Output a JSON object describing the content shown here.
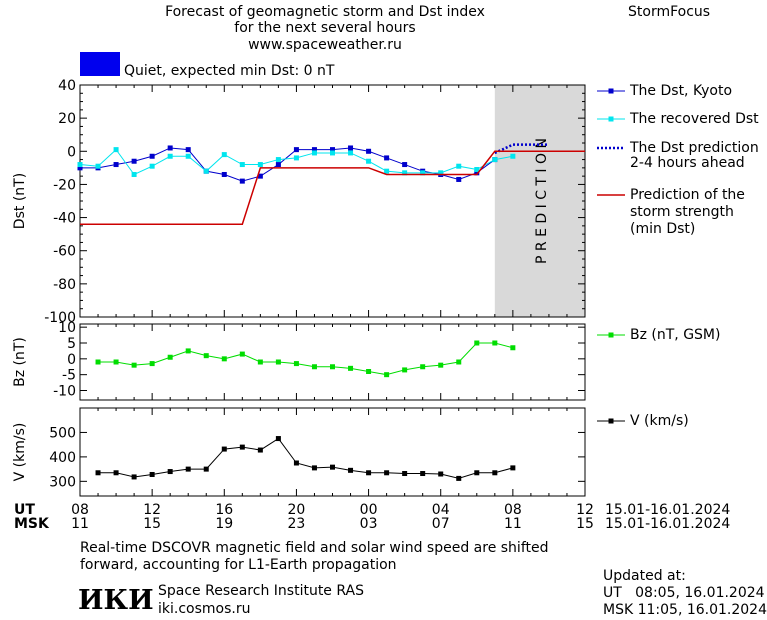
{
  "header": {
    "title_line1": "Forecast of geomagnetic storm and Dst index",
    "title_line2": "for the next several hours",
    "website": "www.spaceweather.ru",
    "brand": "StormFocus"
  },
  "status": {
    "label": "Quiet, expected min Dst: 0 nT",
    "color": "#0000ee"
  },
  "legend": {
    "dst_kyoto": "The Dst, Kyoto",
    "recovered": "The recovered Dst",
    "prediction_line1": "The Dst prediction",
    "prediction_line2": "2-4 hours ahead",
    "storm_line1": "Prediction of the",
    "storm_line2": "storm strength",
    "storm_line3": "(min Dst)",
    "bz": "Bz (nT, GSM)",
    "v": "V (km/s)"
  },
  "time_axis": {
    "ut_label": "UT",
    "msk_label": "MSK",
    "ut_ticks": [
      "08",
      "12",
      "16",
      "20",
      "00",
      "04",
      "08",
      "12"
    ],
    "msk_ticks": [
      "11",
      "15",
      "19",
      "23",
      "03",
      "07",
      "11",
      "15"
    ],
    "date_range": "15.01-16.01.2024"
  },
  "footer": {
    "note_line1": "Real-time DSCOVR magnetic field and solar wind speed are shifted",
    "note_line2": "forward, accounting for L1-Earth propagation",
    "logo_text": "ИКИ",
    "institute": "Space Research Institute RAS",
    "institute_url": "iki.cosmos.ru",
    "updated_label": "Updated at:",
    "updated_ut": "UT   08:05, 16.01.2024",
    "updated_msk": "MSK 11:05, 16.01.2024"
  },
  "prediction_band_label": "P R E D I C T I O N",
  "colors": {
    "dst_kyoto": "#0000cc",
    "recovered": "#00e5ee",
    "prediction": "#0000cc",
    "storm": "#cc0000",
    "bz": "#00dd00",
    "v": "#000000",
    "prediction_band": "#d9d9d9"
  },
  "chart_data": [
    {
      "type": "line",
      "ylabel": "Dst (nT)",
      "xlim": [
        8,
        36
      ],
      "ylim": [
        -100,
        40
      ],
      "yticks": [
        40,
        20,
        0,
        -20,
        -40,
        -60,
        -80,
        -100
      ],
      "prediction_start": 31,
      "series": [
        {
          "name": "The Dst, Kyoto",
          "x": [
            8,
            9,
            10,
            11,
            12,
            13,
            14,
            15,
            16,
            17,
            18,
            19,
            20,
            21,
            22,
            23,
            24,
            25,
            26,
            27,
            28,
            29,
            30,
            31
          ],
          "y": [
            -10,
            -10,
            -8,
            -6,
            -3,
            2,
            1,
            -12,
            -14,
            -18,
            -15,
            -8,
            1,
            1,
            1,
            2,
            0,
            -4,
            -8,
            -12,
            -14,
            -17,
            -13,
            -5
          ]
        },
        {
          "name": "The recovered Dst",
          "x": [
            8,
            9,
            10,
            11,
            12,
            13,
            14,
            15,
            16,
            17,
            18,
            19,
            20,
            21,
            22,
            23,
            24,
            25,
            26,
            27,
            28,
            29,
            30,
            31,
            32
          ],
          "y": [
            -8,
            -9,
            1,
            -14,
            -9,
            -3,
            -3,
            -12,
            -2,
            -8,
            -8,
            -5,
            -4,
            -1,
            -1,
            -1,
            -6,
            -12,
            -13,
            -13,
            -13,
            -9,
            -11,
            -5,
            -3
          ]
        },
        {
          "name": "The Dst prediction 2-4 hours ahead",
          "x": [
            31,
            32,
            34
          ],
          "y": [
            -1,
            4,
            4
          ]
        },
        {
          "name": "Prediction of the storm strength (min Dst)",
          "x": [
            8,
            17,
            18,
            24,
            25,
            30,
            31,
            36
          ],
          "y": [
            -44,
            -44,
            -10,
            -10,
            -14,
            -14,
            0,
            0
          ]
        }
      ]
    },
    {
      "type": "line",
      "ylabel": "Bz (nT)",
      "xlim": [
        8,
        36
      ],
      "ylim": [
        -13,
        11
      ],
      "yticks": [
        10,
        5,
        0,
        -5,
        -10
      ],
      "series": [
        {
          "name": "Bz (nT, GSM)",
          "x": [
            9,
            10,
            11,
            12,
            13,
            14,
            15,
            16,
            17,
            18,
            19,
            20,
            21,
            22,
            23,
            24,
            25,
            26,
            27,
            28,
            29,
            30,
            31,
            32
          ],
          "y": [
            -1,
            -1,
            -2,
            -1.5,
            0.5,
            2.5,
            1,
            0,
            1.5,
            -1,
            -1,
            -1.5,
            -2.5,
            -2.5,
            -3,
            -4,
            -5,
            -3.5,
            -2.5,
            -2,
            -1,
            5,
            5,
            3.5
          ]
        }
      ]
    },
    {
      "type": "line",
      "ylabel": "V (km/s)",
      "xlim": [
        8,
        36
      ],
      "ylim": [
        240,
        600
      ],
      "yticks": [
        500,
        400,
        300
      ],
      "series": [
        {
          "name": "V (km/s)",
          "x": [
            9,
            10,
            11,
            12,
            13,
            14,
            15,
            16,
            17,
            18,
            19,
            20,
            21,
            22,
            23,
            24,
            25,
            26,
            27,
            28,
            29,
            30,
            31,
            32
          ],
          "y": [
            335,
            335,
            318,
            328,
            340,
            350,
            350,
            432,
            440,
            428,
            475,
            375,
            355,
            358,
            345,
            335,
            335,
            332,
            332,
            330,
            312,
            335,
            335,
            355
          ]
        }
      ]
    }
  ]
}
